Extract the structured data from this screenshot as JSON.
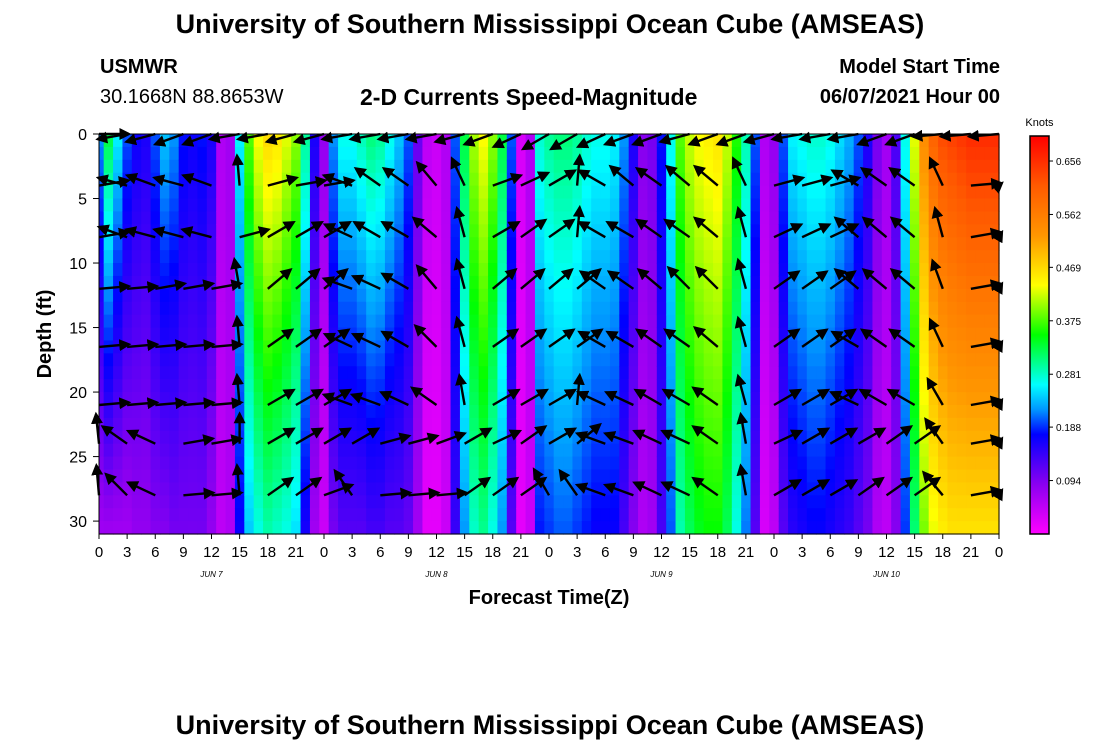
{
  "header": {
    "title_top": "University of Southern Mississippi Ocean Cube (AMSEAS)",
    "station": "USMWR",
    "location": "30.1668N  88.8653W",
    "chart_title": "2-D Currents Speed-Magnitude",
    "model_label": "Model Start Time",
    "model_time": "06/07/2021 Hour 00",
    "title_bottom": "University of Southern Mississippi Ocean Cube (AMSEAS)"
  },
  "chart_data": {
    "type": "heatmap",
    "title": "2-D Currents Speed-Magnitude",
    "xlabel": "Forecast Time(Z)",
    "ylabel": "Depth (ft)",
    "x_range_hours": [
      0,
      96
    ],
    "ylim": [
      0,
      31
    ],
    "y_ticks": [
      0,
      5,
      10,
      15,
      20,
      25,
      30
    ],
    "x_tick_labels": [
      "0",
      "3",
      "6",
      "9",
      "12",
      "15",
      "18",
      "21",
      "0",
      "3",
      "6",
      "9",
      "12",
      "15",
      "18",
      "21",
      "0",
      "3",
      "6",
      "9",
      "12",
      "15",
      "18",
      "21",
      "0",
      "3",
      "6",
      "9",
      "12",
      "15",
      "18",
      "21",
      "0"
    ],
    "date_labels": [
      {
        "label": "JUN 7",
        "hour": 12
      },
      {
        "label": "JUN 8",
        "hour": 36
      },
      {
        "label": "JUN 9",
        "hour": 60
      },
      {
        "label": "JUN 10",
        "hour": 84
      }
    ],
    "colorbar": {
      "unit": "Knots",
      "min": 0.0,
      "max": 0.7,
      "tick_values": [
        0.656,
        0.562,
        0.469,
        0.375,
        0.281,
        0.188,
        0.094
      ]
    },
    "speed_profile_knots": {
      "hours": [
        0,
        1,
        2,
        3,
        4,
        5,
        6,
        7,
        8,
        9,
        10,
        11,
        12,
        13,
        14,
        15,
        16,
        17,
        18,
        19,
        20,
        21,
        22,
        23,
        24,
        25,
        26,
        27,
        28,
        29,
        30,
        31,
        32,
        33,
        34,
        35,
        36,
        37,
        38,
        39,
        40,
        41,
        42,
        43,
        44,
        45,
        46,
        47,
        48,
        49,
        50,
        51,
        52,
        53,
        54,
        55,
        56,
        57,
        58,
        59,
        60,
        61,
        62,
        63,
        64,
        65,
        66,
        67,
        68,
        69,
        70,
        71,
        72,
        73,
        74,
        75,
        76,
        77,
        78,
        79,
        80,
        81,
        82,
        83,
        84,
        85,
        86,
        87,
        88,
        89,
        90,
        91,
        92,
        93,
        94,
        95,
        96
      ],
      "surface": [
        0.22,
        0.33,
        0.26,
        0.2,
        0.17,
        0.16,
        0.2,
        0.24,
        0.22,
        0.18,
        0.17,
        0.18,
        0.16,
        0.06,
        0.07,
        0.26,
        0.38,
        0.44,
        0.47,
        0.46,
        0.43,
        0.4,
        0.3,
        0.16,
        0.08,
        0.22,
        0.27,
        0.27,
        0.29,
        0.31,
        0.3,
        0.27,
        0.24,
        0.2,
        0.11,
        0.05,
        0.04,
        0.06,
        0.2,
        0.33,
        0.41,
        0.44,
        0.4,
        0.33,
        0.2,
        0.03,
        0.06,
        0.28,
        0.3,
        0.31,
        0.31,
        0.3,
        0.28,
        0.27,
        0.27,
        0.26,
        0.22,
        0.16,
        0.09,
        0.1,
        0.18,
        0.27,
        0.38,
        0.42,
        0.44,
        0.45,
        0.46,
        0.42,
        0.36,
        0.29,
        0.2,
        0.06,
        0.08,
        0.2,
        0.26,
        0.27,
        0.28,
        0.28,
        0.27,
        0.25,
        0.23,
        0.2,
        0.16,
        0.1,
        0.07,
        0.13,
        0.27,
        0.43,
        0.54,
        0.6,
        0.63,
        0.64,
        0.65,
        0.66,
        0.66,
        0.66,
        0.66
      ],
      "bottom": [
        0.07,
        0.07,
        0.07,
        0.07,
        0.08,
        0.08,
        0.09,
        0.09,
        0.1,
        0.1,
        0.1,
        0.1,
        0.08,
        0.05,
        0.06,
        0.17,
        0.24,
        0.27,
        0.29,
        0.28,
        0.27,
        0.25,
        0.16,
        0.07,
        0.04,
        0.1,
        0.12,
        0.12,
        0.12,
        0.13,
        0.13,
        0.12,
        0.12,
        0.11,
        0.07,
        0.02,
        0.02,
        0.04,
        0.14,
        0.22,
        0.28,
        0.3,
        0.27,
        0.22,
        0.12,
        0.02,
        0.04,
        0.18,
        0.19,
        0.2,
        0.2,
        0.19,
        0.18,
        0.17,
        0.17,
        0.17,
        0.13,
        0.09,
        0.06,
        0.07,
        0.13,
        0.2,
        0.29,
        0.32,
        0.34,
        0.35,
        0.35,
        0.32,
        0.27,
        0.21,
        0.12,
        0.03,
        0.05,
        0.12,
        0.15,
        0.16,
        0.17,
        0.17,
        0.16,
        0.15,
        0.14,
        0.12,
        0.1,
        0.06,
        0.05,
        0.09,
        0.19,
        0.31,
        0.39,
        0.43,
        0.45,
        0.46,
        0.46,
        0.46,
        0.46,
        0.46,
        0.46
      ]
    },
    "vector_depths_ft": [
      0,
      4,
      8,
      12,
      16.5,
      21,
      24,
      28
    ],
    "vector_hours": [
      0,
      3,
      6,
      9,
      12,
      15,
      18,
      21,
      24,
      27,
      30,
      33,
      36,
      39,
      42,
      45,
      48,
      51,
      54,
      57,
      60,
      63,
      66,
      69,
      72,
      75,
      78,
      81,
      84,
      87,
      90,
      93,
      96
    ],
    "vector_dirs_deg": [
      [
        0,
        170,
        165,
        160,
        160,
        170,
        170,
        165,
        165,
        170,
        170,
        170,
        170,
        165,
        160,
        155,
        150,
        150,
        155,
        160,
        160,
        165,
        160,
        160,
        165,
        170,
        170,
        170,
        160,
        160,
        175,
        175,
        175
      ],
      [
        -10,
        195,
        200,
        195,
        200,
        265,
        -15,
        -10,
        -10,
        200,
        215,
        215,
        230,
        245,
        -20,
        -25,
        -30,
        275,
        210,
        220,
        215,
        220,
        220,
        245,
        -15,
        -15,
        -15,
        210,
        215,
        215,
        245,
        -5,
        -5
      ],
      [
        -10,
        200,
        195,
        195,
        195,
        -15,
        -30,
        -30,
        -30,
        205,
        210,
        210,
        220,
        255,
        -30,
        -35,
        -35,
        275,
        210,
        210,
        215,
        215,
        220,
        255,
        -25,
        -25,
        -25,
        220,
        220,
        220,
        255,
        -10,
        -10
      ],
      [
        -5,
        -5,
        -10,
        -10,
        -10,
        260,
        -40,
        -40,
        -40,
        200,
        205,
        210,
        230,
        255,
        -40,
        -40,
        -40,
        -40,
        215,
        215,
        220,
        225,
        225,
        255,
        -35,
        -35,
        -35,
        220,
        220,
        220,
        250,
        -10,
        -10
      ],
      [
        -5,
        -5,
        -5,
        -5,
        -5,
        265,
        -35,
        -35,
        -35,
        205,
        205,
        210,
        225,
        255,
        -35,
        -35,
        -35,
        -35,
        210,
        210,
        215,
        215,
        220,
        255,
        -35,
        -35,
        -35,
        210,
        215,
        215,
        245,
        -10,
        -10
      ],
      [
        -5,
        -5,
        -5,
        -5,
        -5,
        265,
        -30,
        -30,
        -30,
        200,
        200,
        205,
        215,
        260,
        -30,
        -30,
        -30,
        275,
        205,
        205,
        210,
        210,
        215,
        255,
        -30,
        -30,
        -30,
        205,
        210,
        210,
        240,
        -10,
        -10
      ],
      [
        260,
        215,
        205,
        -10,
        -10,
        270,
        -30,
        -30,
        -30,
        -30,
        -15,
        -15,
        -20,
        -30,
        -25,
        -35,
        -30,
        -40,
        200,
        200,
        205,
        205,
        215,
        260,
        -25,
        -30,
        -30,
        -30,
        -35,
        -35,
        235,
        -10,
        -10
      ],
      [
        265,
        225,
        205,
        -5,
        -5,
        265,
        -35,
        -35,
        -20,
        235,
        -5,
        -5,
        -5,
        -35,
        -35,
        -35,
        240,
        235,
        200,
        200,
        205,
        205,
        215,
        260,
        -30,
        -30,
        -30,
        -35,
        -35,
        -35,
        230,
        -10,
        -10
      ]
    ]
  }
}
